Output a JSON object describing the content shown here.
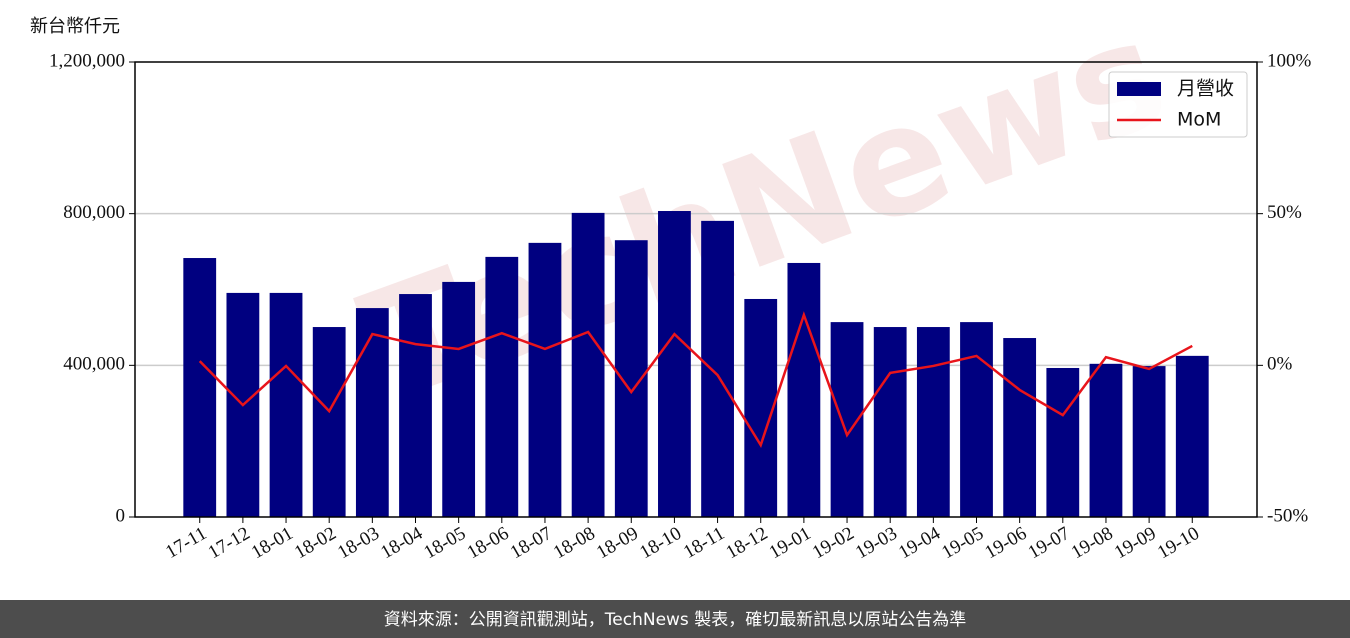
{
  "chart_data": {
    "type": "bar_line",
    "y_axis_label": "新台幣仟元",
    "watermark": "TechNews",
    "footer": "資料來源：公開資訊觀測站，TechNews 製表，確切最新訊息以原站公告為準",
    "categories": [
      "17-11",
      "17-12",
      "18-01",
      "18-02",
      "18-03",
      "18-04",
      "18-05",
      "18-06",
      "18-07",
      "18-08",
      "18-09",
      "18-10",
      "18-11",
      "18-12",
      "19-01",
      "19-02",
      "19-03",
      "19-04",
      "19-05",
      "19-06",
      "19-07",
      "19-08",
      "19-09",
      "19-10"
    ],
    "series": [
      {
        "name": "月營收",
        "type": "bar",
        "color": "#000080",
        "axis": "y",
        "values": [
          683000,
          591000,
          591000,
          501000,
          551000,
          588000,
          620000,
          686000,
          723000,
          802000,
          730000,
          807000,
          781000,
          575000,
          670000,
          514000,
          501000,
          501000,
          514000,
          472000,
          393000,
          404000,
          398000,
          425000
        ]
      },
      {
        "name": "MoM",
        "type": "line",
        "color": "#e8141b",
        "axis": "y2",
        "values": [
          1.4,
          -13.1,
          -0.2,
          -15.1,
          10.3,
          7.0,
          5.4,
          10.6,
          5.4,
          11.0,
          -8.8,
          10.3,
          -3.2,
          -26.3,
          16.6,
          -23.0,
          -2.5,
          -0.2,
          3.1,
          -8.1,
          -16.4,
          2.7,
          -1.2,
          6.4
        ]
      }
    ],
    "ylim": [
      0,
      1200000
    ],
    "yticks": [
      0,
      {
        "value": 400000,
        "label": "400,000"
      },
      {
        "value": 800000,
        "label": "800,000"
      },
      {
        "value": 1200000,
        "label": "1,200,000"
      }
    ],
    "y2lim": [
      -50,
      100
    ],
    "y2ticks": [
      {
        "value": -50,
        "label": "-50%"
      },
      {
        "value": 0,
        "label": "0%"
      },
      {
        "value": 50,
        "label": "50%"
      },
      {
        "value": 100,
        "label": "100%"
      }
    ],
    "grid": true,
    "legend": "upper right"
  }
}
